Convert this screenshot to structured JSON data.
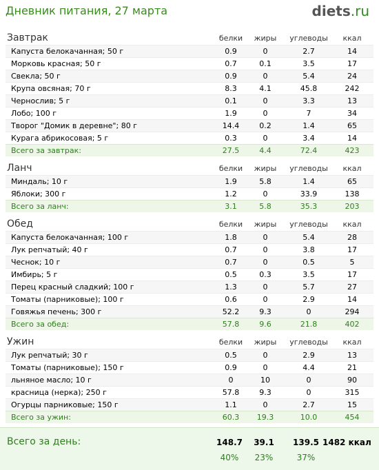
{
  "header": {
    "title": "Дневник питания, 27 марта",
    "logo_main": "diets",
    "logo_tld": ".ru"
  },
  "columns": {
    "protein": "белки",
    "fat": "жиры",
    "carbs": "углеводы",
    "kcal": "ккал"
  },
  "meals": [
    {
      "name": "Завтрак",
      "items": [
        {
          "name": "Капуста белокачанная; 50 г",
          "protein": "0.9",
          "fat": "0",
          "carbs": "2.7",
          "kcal": "14"
        },
        {
          "name": "Морковь красная; 50 г",
          "protein": "0.7",
          "fat": "0.1",
          "carbs": "3.5",
          "kcal": "17"
        },
        {
          "name": "Свекла; 50 г",
          "protein": "0.9",
          "fat": "0",
          "carbs": "5.4",
          "kcal": "24"
        },
        {
          "name": "Крупа овсяная; 70 г",
          "protein": "8.3",
          "fat": "4.1",
          "carbs": "45.8",
          "kcal": "242"
        },
        {
          "name": "Чернослив; 5 г",
          "protein": "0.1",
          "fat": "0",
          "carbs": "3.3",
          "kcal": "13"
        },
        {
          "name": "Лобо; 100 г",
          "protein": "1.9",
          "fat": "0",
          "carbs": "7",
          "kcal": "34"
        },
        {
          "name": "Творог \"Домик в деревне\"; 80 г",
          "protein": "14.4",
          "fat": "0.2",
          "carbs": "1.4",
          "kcal": "65"
        },
        {
          "name": "Курага абрикосовая; 5 г",
          "protein": "0.3",
          "fat": "0",
          "carbs": "3.4",
          "kcal": "14"
        }
      ],
      "total": {
        "label": "Всего за завтрак:",
        "protein": "27.5",
        "fat": "4.4",
        "carbs": "72.4",
        "kcal": "423"
      }
    },
    {
      "name": "Ланч",
      "items": [
        {
          "name": "Миндаль; 10 г",
          "protein": "1.9",
          "fat": "5.8",
          "carbs": "1.4",
          "kcal": "65"
        },
        {
          "name": "Яблоки; 300 г",
          "protein": "1.2",
          "fat": "0",
          "carbs": "33.9",
          "kcal": "138"
        }
      ],
      "total": {
        "label": "Всего за ланч:",
        "protein": "3.1",
        "fat": "5.8",
        "carbs": "35.3",
        "kcal": "203"
      }
    },
    {
      "name": "Обед",
      "items": [
        {
          "name": "Капуста белокачанная; 100 г",
          "protein": "1.8",
          "fat": "0",
          "carbs": "5.4",
          "kcal": "28"
        },
        {
          "name": "Лук репчатый; 40 г",
          "protein": "0.7",
          "fat": "0",
          "carbs": "3.8",
          "kcal": "17"
        },
        {
          "name": "Чеснок; 10 г",
          "protein": "0.7",
          "fat": "0",
          "carbs": "0.5",
          "kcal": "5"
        },
        {
          "name": "Имбирь; 5 г",
          "protein": "0.5",
          "fat": "0.3",
          "carbs": "3.5",
          "kcal": "17"
        },
        {
          "name": "Перец красный сладкий; 100 г",
          "protein": "1.3",
          "fat": "0",
          "carbs": "5.7",
          "kcal": "27"
        },
        {
          "name": "Томаты (парниковые); 100 г",
          "protein": "0.6",
          "fat": "0",
          "carbs": "2.9",
          "kcal": "14"
        },
        {
          "name": "Говяжья печень; 300 г",
          "protein": "52.2",
          "fat": "9.3",
          "carbs": "0",
          "kcal": "294"
        }
      ],
      "total": {
        "label": "Всего за обед:",
        "protein": "57.8",
        "fat": "9.6",
        "carbs": "21.8",
        "kcal": "402"
      }
    },
    {
      "name": "Ужин",
      "items": [
        {
          "name": "Лук репчатый; 30 г",
          "protein": "0.5",
          "fat": "0",
          "carbs": "2.9",
          "kcal": "13"
        },
        {
          "name": "Томаты (парниковые); 150 г",
          "protein": "0.9",
          "fat": "0",
          "carbs": "4.4",
          "kcal": "21"
        },
        {
          "name": "льняное масло; 10 г",
          "protein": "0",
          "fat": "10",
          "carbs": "0",
          "kcal": "90"
        },
        {
          "name": "красница (нерка); 250 г",
          "protein": "57.8",
          "fat": "9.3",
          "carbs": "0",
          "kcal": "315"
        },
        {
          "name": "Огурцы парниковые; 150 г",
          "protein": "1.1",
          "fat": "0",
          "carbs": "2.7",
          "kcal": "15"
        }
      ],
      "total": {
        "label": "Всего за ужин:",
        "protein": "60.3",
        "fat": "19.3",
        "carbs": "10.0",
        "kcal": "454"
      }
    }
  ],
  "day_total": {
    "label": "Всего за день:",
    "protein": "148.7",
    "fat": "39.1",
    "carbs": "139.5",
    "kcal": "1482 ккал",
    "protein_pct": "40%",
    "fat_pct": "23%",
    "carbs_pct": "37%"
  }
}
